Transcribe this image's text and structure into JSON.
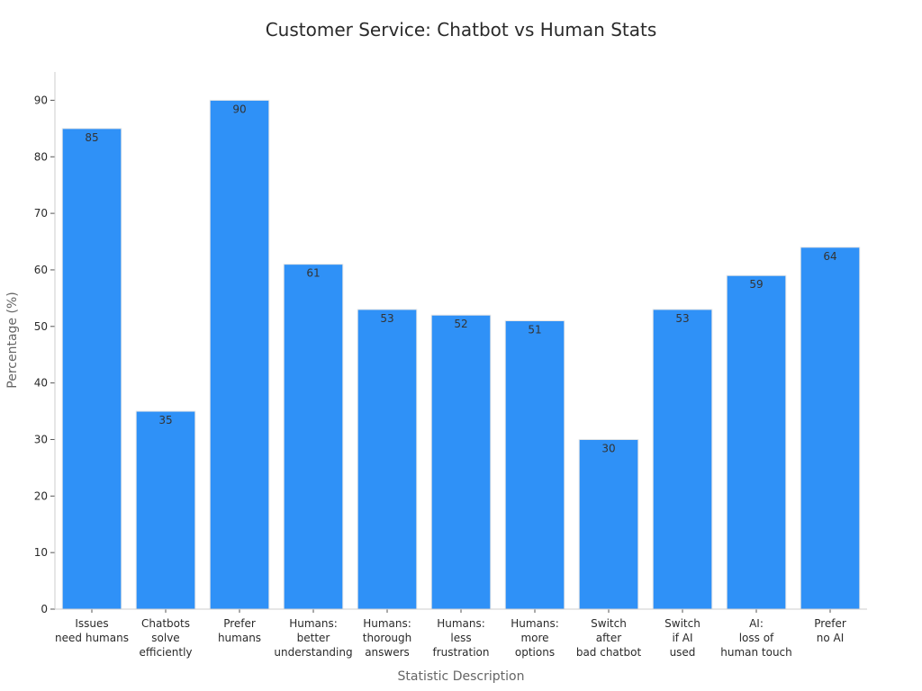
{
  "chart_data": {
    "type": "bar",
    "title": "Customer Service: Chatbot vs Human Stats",
    "xlabel": "Statistic Description",
    "ylabel": "Percentage (%)",
    "ylim": [
      0,
      95
    ],
    "yticks": [
      0,
      10,
      20,
      30,
      40,
      50,
      60,
      70,
      80,
      90
    ],
    "grid": false,
    "bar_color": "#2f91f7",
    "bar_edge_color": "#e6e6e6",
    "categories": [
      [
        "Issues",
        "need humans"
      ],
      [
        "Chatbots",
        "solve",
        "efficiently"
      ],
      [
        "Prefer",
        "humans"
      ],
      [
        "Humans:",
        "better",
        "understanding"
      ],
      [
        "Humans:",
        "thorough",
        "answers"
      ],
      [
        "Humans:",
        "less",
        "frustration"
      ],
      [
        "Humans:",
        "more",
        "options"
      ],
      [
        "Switch",
        "after",
        "bad chatbot"
      ],
      [
        "Switch",
        "if AI",
        "used"
      ],
      [
        "AI:",
        "loss of",
        "human touch"
      ],
      [
        "Prefer",
        "no AI"
      ]
    ],
    "values": [
      85,
      35,
      90,
      61,
      53,
      52,
      51,
      30,
      53,
      59,
      64
    ]
  }
}
